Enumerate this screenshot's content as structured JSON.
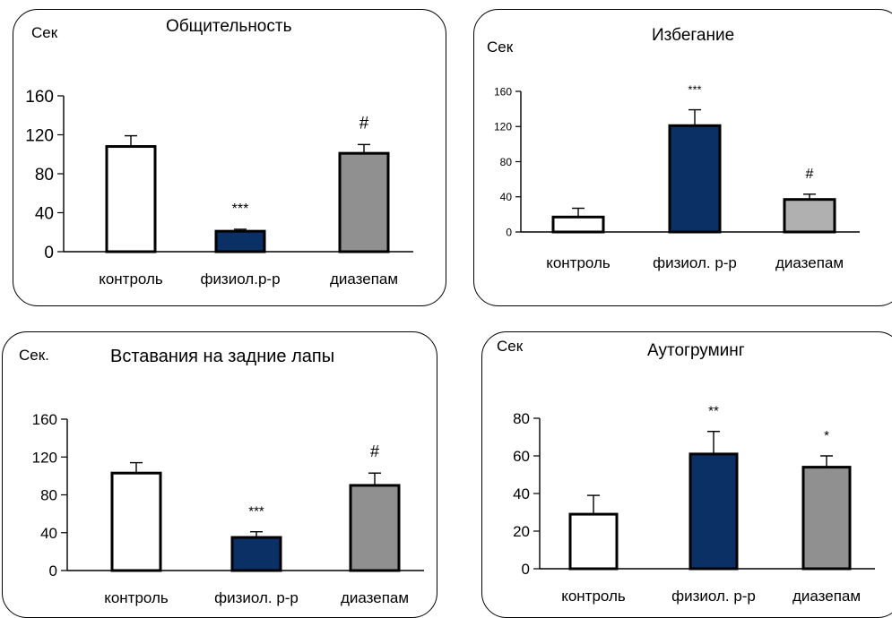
{
  "chart_data": [
    {
      "type": "bar",
      "title": "Общительность",
      "ylabel": "Сек",
      "categories": [
        "контроль",
        "физиол.р-р",
        "диазепам"
      ],
      "values": [
        108,
        21,
        101
      ],
      "errors": [
        11,
        2,
        9
      ],
      "significance": [
        "",
        "***",
        "#"
      ],
      "ylim": [
        0,
        160
      ],
      "yticks": [
        "0",
        "40",
        "80",
        "120",
        "160"
      ],
      "colors": [
        "#ffffff",
        "#0a3066",
        "#909090"
      ]
    },
    {
      "type": "bar",
      "title": "Избегание",
      "ylabel": "Сек",
      "categories": [
        "контроль",
        "физиол. р-р",
        "диазепам"
      ],
      "values": [
        17,
        121,
        37
      ],
      "errors": [
        10,
        18,
        6
      ],
      "significance": [
        "",
        "***",
        "#"
      ],
      "ylim": [
        0,
        160
      ],
      "yticks": [
        "0",
        "40",
        "80",
        "120",
        "160"
      ],
      "colors": [
        "#ffffff",
        "#0a3066",
        "#b0b0b0"
      ]
    },
    {
      "type": "bar",
      "title": "Вставания на  задние лапы",
      "ylabel": "Сек.",
      "categories": [
        "контроль",
        "физиол. р-р",
        "диазепам"
      ],
      "values": [
        103,
        35,
        90
      ],
      "errors": [
        11,
        6,
        13
      ],
      "significance": [
        "",
        "***",
        "#"
      ],
      "ylim": [
        0,
        160
      ],
      "yticks": [
        "0",
        "40",
        "80",
        "120",
        "160"
      ],
      "colors": [
        "#ffffff",
        "#0a3066",
        "#909090"
      ]
    },
    {
      "type": "bar",
      "title": "Аутогруминг",
      "ylabel": "Сек",
      "categories": [
        "контроль",
        "физиол. р-р",
        "диазепам"
      ],
      "values": [
        29,
        61,
        54
      ],
      "errors": [
        10,
        12,
        6
      ],
      "significance": [
        "",
        "**",
        "*"
      ],
      "ylim": [
        0,
        80
      ],
      "yticks": [
        "0",
        "20",
        "40",
        "60",
        "80"
      ],
      "colors": [
        "#ffffff",
        "#0a3066",
        "#909090"
      ]
    }
  ]
}
